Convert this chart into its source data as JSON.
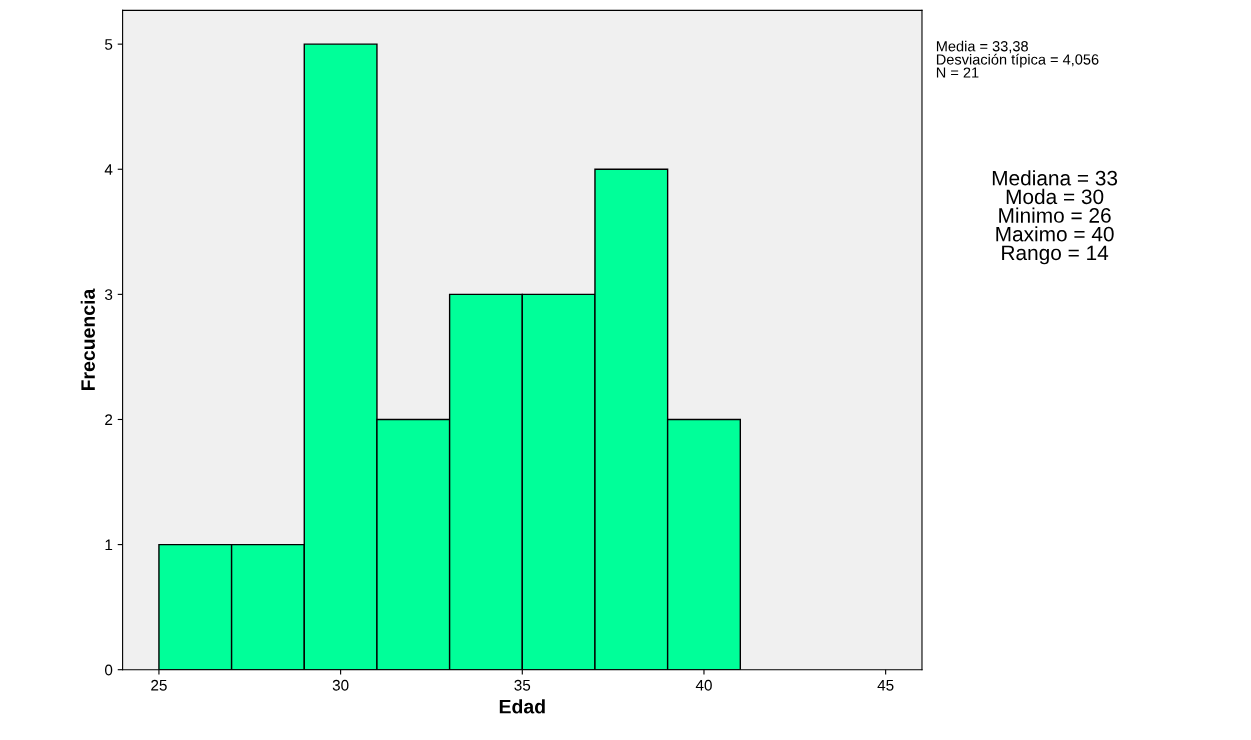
{
  "chart_data": {
    "type": "histogram",
    "xlabel": "Edad",
    "ylabel": "Frecuencia",
    "bins": [
      25,
      27,
      29,
      31,
      33,
      35,
      37,
      39,
      41
    ],
    "values": [
      1,
      1,
      5,
      2,
      3,
      3,
      4,
      2
    ],
    "color": "#00ff99",
    "xlim": [
      24,
      46
    ],
    "xticks": [
      25,
      30,
      35,
      40,
      45
    ],
    "ylim": [
      0,
      5.27
    ],
    "yticks": [
      0,
      1,
      2,
      3,
      4,
      5
    ],
    "grid": false,
    "legend": false,
    "annotations": [
      "Media = 33,38\nDesviación típica = 4,056\nN = 21",
      "Mediana = 33\nModa = 30\nMinimo = 26\nMaximo = 40\nRango = 14"
    ]
  }
}
